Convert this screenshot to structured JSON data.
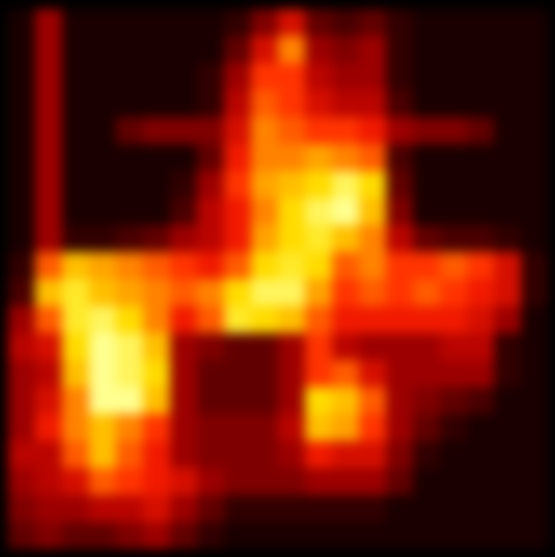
{
  "chart_data": {
    "type": "heatmap",
    "tick_labels": false,
    "z": [
      [
        0.05,
        0.3,
        0.05,
        0.05,
        0.05,
        0.05,
        0.05,
        0.05,
        0.1,
        0.25,
        0.4,
        0.2,
        0.15,
        0.2,
        0.1,
        0.05,
        0.05,
        0.05,
        0.05,
        0.05
      ],
      [
        0.05,
        0.3,
        0.05,
        0.05,
        0.05,
        0.05,
        0.05,
        0.05,
        0.2,
        0.4,
        0.6,
        0.3,
        0.25,
        0.3,
        0.1,
        0.05,
        0.05,
        0.05,
        0.05,
        0.05
      ],
      [
        0.05,
        0.3,
        0.05,
        0.05,
        0.05,
        0.05,
        0.05,
        0.1,
        0.3,
        0.5,
        0.5,
        0.35,
        0.3,
        0.3,
        0.1,
        0.05,
        0.05,
        0.05,
        0.05,
        0.05
      ],
      [
        0.05,
        0.3,
        0.05,
        0.05,
        0.05,
        0.05,
        0.05,
        0.1,
        0.35,
        0.55,
        0.5,
        0.4,
        0.35,
        0.35,
        0.15,
        0.05,
        0.05,
        0.05,
        0.05,
        0.05
      ],
      [
        0.05,
        0.3,
        0.05,
        0.05,
        0.2,
        0.25,
        0.25,
        0.25,
        0.4,
        0.6,
        0.55,
        0.5,
        0.5,
        0.45,
        0.3,
        0.25,
        0.25,
        0.2,
        0.05,
        0.05
      ],
      [
        0.05,
        0.3,
        0.05,
        0.05,
        0.05,
        0.05,
        0.05,
        0.2,
        0.45,
        0.6,
        0.6,
        0.65,
        0.6,
        0.55,
        0.15,
        0.05,
        0.05,
        0.05,
        0.05,
        0.05
      ],
      [
        0.05,
        0.3,
        0.05,
        0.05,
        0.05,
        0.05,
        0.1,
        0.3,
        0.5,
        0.65,
        0.7,
        0.75,
        0.85,
        0.75,
        0.2,
        0.05,
        0.05,
        0.05,
        0.05,
        0.05
      ],
      [
        0.05,
        0.3,
        0.05,
        0.05,
        0.05,
        0.05,
        0.15,
        0.35,
        0.45,
        0.6,
        0.75,
        0.85,
        0.9,
        0.7,
        0.25,
        0.05,
        0.05,
        0.05,
        0.05,
        0.05
      ],
      [
        0.05,
        0.3,
        0.1,
        0.1,
        0.15,
        0.2,
        0.3,
        0.35,
        0.45,
        0.65,
        0.75,
        0.8,
        0.7,
        0.6,
        0.35,
        0.2,
        0.15,
        0.15,
        0.1,
        0.05
      ],
      [
        0.1,
        0.55,
        0.7,
        0.65,
        0.6,
        0.55,
        0.5,
        0.45,
        0.55,
        0.75,
        0.8,
        0.75,
        0.55,
        0.6,
        0.5,
        0.5,
        0.55,
        0.5,
        0.4,
        0.1
      ],
      [
        0.15,
        0.7,
        0.8,
        0.7,
        0.65,
        0.6,
        0.55,
        0.6,
        0.75,
        0.85,
        0.85,
        0.65,
        0.5,
        0.55,
        0.5,
        0.55,
        0.5,
        0.45,
        0.4,
        0.1
      ],
      [
        0.3,
        0.55,
        0.8,
        0.85,
        0.75,
        0.6,
        0.45,
        0.55,
        0.8,
        0.75,
        0.7,
        0.55,
        0.45,
        0.45,
        0.45,
        0.45,
        0.45,
        0.4,
        0.3,
        0.05
      ],
      [
        0.35,
        0.4,
        0.75,
        0.9,
        0.85,
        0.7,
        0.3,
        0.25,
        0.2,
        0.2,
        0.3,
        0.5,
        0.35,
        0.3,
        0.3,
        0.3,
        0.35,
        0.35,
        0.1,
        0.05
      ],
      [
        0.3,
        0.35,
        0.7,
        0.9,
        0.85,
        0.75,
        0.3,
        0.2,
        0.2,
        0.2,
        0.3,
        0.5,
        0.55,
        0.4,
        0.3,
        0.3,
        0.3,
        0.3,
        0.1,
        0.05
      ],
      [
        0.3,
        0.4,
        0.6,
        0.9,
        0.9,
        0.7,
        0.3,
        0.2,
        0.2,
        0.2,
        0.3,
        0.75,
        0.7,
        0.55,
        0.3,
        0.25,
        0.2,
        0.15,
        0.05,
        0.05
      ],
      [
        0.3,
        0.45,
        0.6,
        0.7,
        0.6,
        0.5,
        0.3,
        0.25,
        0.25,
        0.25,
        0.35,
        0.7,
        0.65,
        0.5,
        0.3,
        0.2,
        0.1,
        0.05,
        0.05,
        0.05
      ],
      [
        0.35,
        0.35,
        0.55,
        0.7,
        0.55,
        0.45,
        0.3,
        0.25,
        0.25,
        0.25,
        0.3,
        0.45,
        0.4,
        0.4,
        0.25,
        0.1,
        0.05,
        0.05,
        0.05,
        0.05
      ],
      [
        0.3,
        0.35,
        0.4,
        0.55,
        0.5,
        0.45,
        0.4,
        0.3,
        0.25,
        0.25,
        0.25,
        0.3,
        0.3,
        0.3,
        0.2,
        0.05,
        0.05,
        0.05,
        0.05,
        0.05
      ],
      [
        0.25,
        0.3,
        0.3,
        0.35,
        0.35,
        0.4,
        0.3,
        0.2,
        0.1,
        0.1,
        0.1,
        0.1,
        0.1,
        0.1,
        0.05,
        0.05,
        0.05,
        0.05,
        0.05,
        0.05
      ],
      [
        0.2,
        0.25,
        0.2,
        0.2,
        0.25,
        0.3,
        0.2,
        0.1,
        0.05,
        0.05,
        0.05,
        0.05,
        0.05,
        0.05,
        0.05,
        0.05,
        0.05,
        0.05,
        0.05,
        0.05
      ]
    ]
  }
}
